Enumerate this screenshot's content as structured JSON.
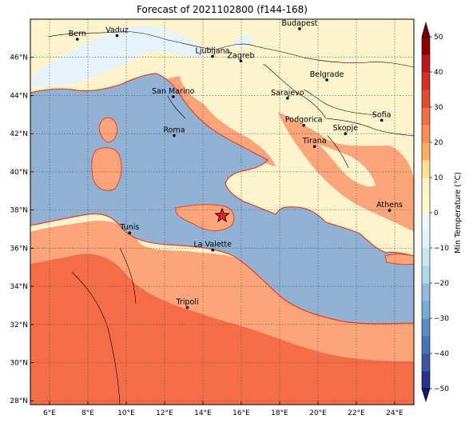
{
  "title": "Forecast of 2021102800 (f144-168)",
  "map": {
    "lon_range": [
      5,
      25
    ],
    "lat_range": [
      27.8,
      48
    ],
    "lon_ticks": [
      6,
      8,
      10,
      12,
      14,
      16,
      18,
      20,
      22,
      24
    ],
    "lat_ticks": [
      28,
      30,
      32,
      34,
      36,
      38,
      40,
      42,
      44,
      46
    ],
    "lon_tick_labels": [
      "6°E",
      "8°E",
      "10°E",
      "12°E",
      "14°E",
      "16°E",
      "18°E",
      "20°E",
      "22°E",
      "24°E"
    ],
    "lat_tick_labels": [
      "28°N",
      "30°N",
      "32°N",
      "34°N",
      "36°N",
      "38°N",
      "40°N",
      "42°N",
      "44°N",
      "46°N"
    ],
    "grid": true,
    "marker": {
      "name": "star",
      "lon": 15.0,
      "lat": 37.7,
      "color": "#e8201e"
    }
  },
  "cities": [
    {
      "name": "Bern",
      "lon": 7.45,
      "lat": 46.95
    },
    {
      "name": "Vaduz",
      "lon": 9.52,
      "lat": 47.14
    },
    {
      "name": "Budapest",
      "lon": 19.04,
      "lat": 47.5
    },
    {
      "name": "Ljubljana",
      "lon": 14.5,
      "lat": 46.05
    },
    {
      "name": "Zagreb",
      "lon": 15.98,
      "lat": 45.81
    },
    {
      "name": "Belgrade",
      "lon": 20.46,
      "lat": 44.82
    },
    {
      "name": "San Marino",
      "lon": 12.45,
      "lat": 43.94
    },
    {
      "name": "Sarajevo",
      "lon": 18.41,
      "lat": 43.86
    },
    {
      "name": "Sofia",
      "lon": 23.32,
      "lat": 42.7
    },
    {
      "name": "Podgorica",
      "lon": 19.26,
      "lat": 42.44
    },
    {
      "name": "Skopje",
      "lon": 21.43,
      "lat": 42.0
    },
    {
      "name": "Roma",
      "lon": 12.5,
      "lat": 41.9
    },
    {
      "name": "Tirana",
      "lon": 19.82,
      "lat": 41.33
    },
    {
      "name": "Athens",
      "lon": 23.73,
      "lat": 37.98
    },
    {
      "name": "Tunis",
      "lon": 10.18,
      "lat": 36.8
    },
    {
      "name": "La Valette",
      "lon": 14.51,
      "lat": 35.9
    },
    {
      "name": "Tripoli",
      "lon": 13.19,
      "lat": 32.89
    }
  ],
  "colorbar": {
    "label": "Min Temperature (°C)",
    "ticks": [
      "50",
      "40",
      "30",
      "20",
      "10",
      "0",
      "−10",
      "−20",
      "−30",
      "−40",
      "−50"
    ],
    "levels": [
      -50,
      -45,
      -40,
      -35,
      -30,
      -25,
      -20,
      -15,
      -10,
      -5,
      0,
      5,
      10,
      15,
      20,
      25,
      30,
      35,
      40,
      45,
      50
    ],
    "colors": [
      "#2b2f8f",
      "#3b55a3",
      "#4575b4",
      "#5b8cc2",
      "#74add1",
      "#92bbdb",
      "#abd9e9",
      "#c6e6f0",
      "#e0f3f8",
      "#eef8fa",
      "#ffffbf",
      "#fff2c4",
      "#fee090",
      "#fdae61",
      "#fc8d59",
      "#f46d43",
      "#e34a33",
      "#d73027",
      "#b7191f",
      "#8b0000"
    ]
  },
  "fill_colors": {
    "sea": "#91b1d5",
    "cold_land": "#e6f4fa",
    "mild_land": "#fdf3cc",
    "warm_land": "#fca57a",
    "hot_land": "#f56d47",
    "coast": "#e8411e"
  }
}
